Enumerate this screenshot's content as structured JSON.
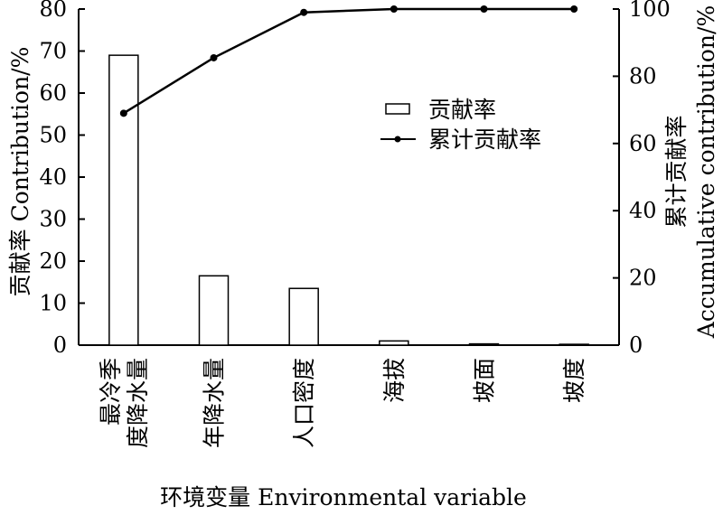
{
  "chart_data": {
    "type": "bar",
    "categories": [
      [
        "最冷季",
        "度降水量"
      ],
      [
        "年降水量"
      ],
      [
        "人口密度"
      ],
      [
        "海拔"
      ],
      [
        "坡面"
      ],
      [
        "坡度"
      ]
    ],
    "series": [
      {
        "name": "贡献率",
        "type": "bar",
        "axis": "left",
        "values": [
          69.0,
          16.5,
          13.5,
          1.0,
          0.3,
          0.2
        ]
      },
      {
        "name": "累计贡献率",
        "type": "line",
        "axis": "right",
        "values": [
          69.0,
          85.5,
          99.0,
          100.0,
          100.0,
          100.0
        ]
      }
    ],
    "xlabel": "环境变量 Environmental variable",
    "ylabel": "贡献率 Contribution/%",
    "y2label_zh": "累计贡献率",
    "y2label_en": "Accumulative contribution/%",
    "ylim": [
      0,
      80
    ],
    "y2lim": [
      0,
      100
    ],
    "yticks": [
      0,
      10,
      20,
      30,
      40,
      50,
      60,
      70,
      80
    ],
    "y2ticks": [
      0,
      20,
      40,
      60,
      80,
      100
    ],
    "legend_position": "center-right",
    "grid": false,
    "colors": {
      "axis": "#000000",
      "bar_fill": "#ffffff",
      "bar_stroke": "#000000",
      "line": "#000000"
    }
  }
}
